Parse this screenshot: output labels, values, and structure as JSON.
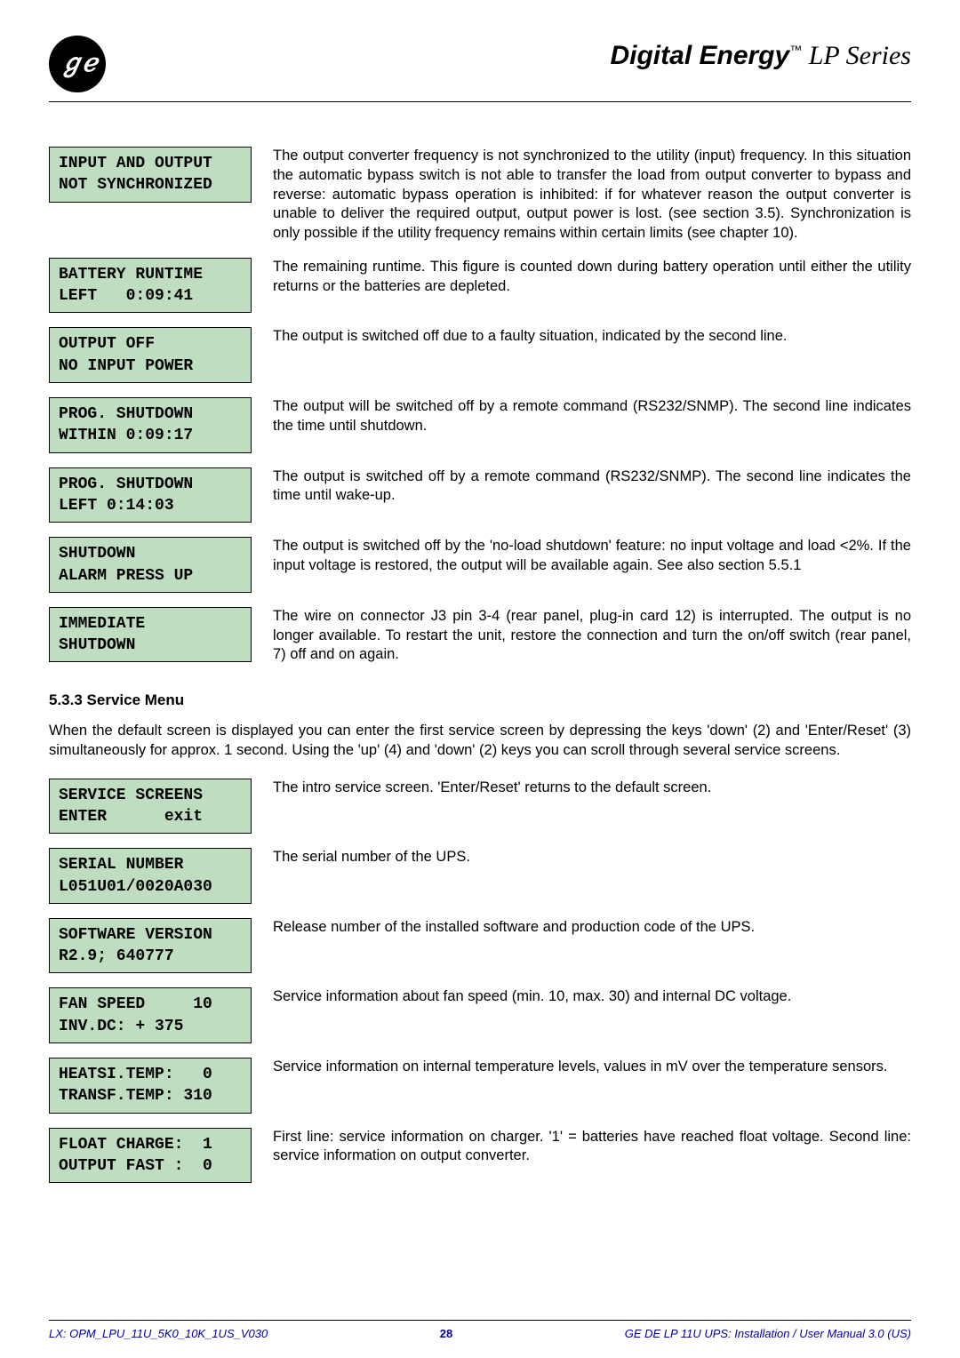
{
  "header": {
    "logo_text": "⅌",
    "brand_bold": "Digital Energy",
    "brand_tm": "™",
    "brand_series": " LP Series"
  },
  "blocks": [
    {
      "lcd": "INPUT AND OUTPUT\nNOT SYNCHRONIZED",
      "desc": "The output converter frequency is not synchronized to the utility (input) frequency. In this situation the automatic bypass switch is not able to transfer the load from output converter to bypass and reverse: automatic bypass operation is inhibited: if for whatever reason the output converter is unable to deliver the required output, output power is lost. (see section 3.5).\nSynchronization is only possible if the utility frequency remains within certain limits (see chapter 10)."
    },
    {
      "lcd": "BATTERY RUNTIME\nLEFT   0:09:41",
      "desc": "The remaining runtime. This figure is counted down during battery operation until either the utility returns or the batteries are depleted."
    },
    {
      "lcd": "OUTPUT OFF\nNO INPUT POWER",
      "desc": "The output is switched off due to a faulty situation, indicated by the second line."
    },
    {
      "lcd": "PROG. SHUTDOWN\nWITHIN 0:09:17",
      "desc": "The output will be switched off by a remote command (RS232/SNMP). The second line indicates the time until shutdown."
    },
    {
      "lcd": "PROG. SHUTDOWN\nLEFT 0:14:03",
      "desc": "The output is switched off by a remote command (RS232/SNMP). The second line indicates the time until wake-up."
    },
    {
      "lcd": "SHUTDOWN\nALARM PRESS UP",
      "desc": "The output is switched off by the 'no-load shutdown' feature: no input voltage and  load <2%. If the input voltage is restored, the output will be available again. See also section 5.5.1"
    },
    {
      "lcd": "IMMEDIATE\nSHUTDOWN",
      "desc": "The wire on connector J3 pin 3-4 (rear panel, plug-in card 12) is interrupted. The output is no longer available. To restart the unit, restore the connection and turn the on/off switch (rear panel, 7) off and on again."
    }
  ],
  "service_heading": "5.3.3  Service Menu",
  "service_intro": "When the default screen is displayed you can enter the first service screen by depressing the keys 'down' (2) and 'Enter/Reset' (3) simultaneously for approx. 1 second. Using the 'up' (4) and 'down' (2) keys you can scroll through several service screens.",
  "service_blocks": [
    {
      "lcd": "SERVICE SCREENS\nENTER      exit",
      "desc": "The intro service screen. 'Enter/Reset' returns to the default screen."
    },
    {
      "lcd": "SERIAL NUMBER\nL051U01/0020A030",
      "desc": "The serial number of the UPS."
    },
    {
      "lcd": "SOFTWARE VERSION\nR2.9; 640777",
      "desc": "Release number of the installed software and production code of the UPS."
    },
    {
      "lcd": "FAN SPEED     10\nINV.DC: + 375",
      "desc": "Service information about fan speed (min. 10, max. 30) and internal DC voltage."
    },
    {
      "lcd": "HEATSI.TEMP:   0\nTRANSF.TEMP: 310",
      "desc": "Service information on internal temperature levels, values in mV over the temperature sensors."
    },
    {
      "lcd": "FLOAT CHARGE:  1\nOUTPUT FAST :  0",
      "desc": "First line: service information on charger. '1' = batteries have reached float voltage.\nSecond line: service information on output converter."
    }
  ],
  "footer": {
    "left": "LX: OPM_LPU_11U_5K0_10K_1US_V030",
    "page": "28",
    "right": "GE DE LP 11U UPS: Installation / User Manual 3.0 (US)"
  }
}
